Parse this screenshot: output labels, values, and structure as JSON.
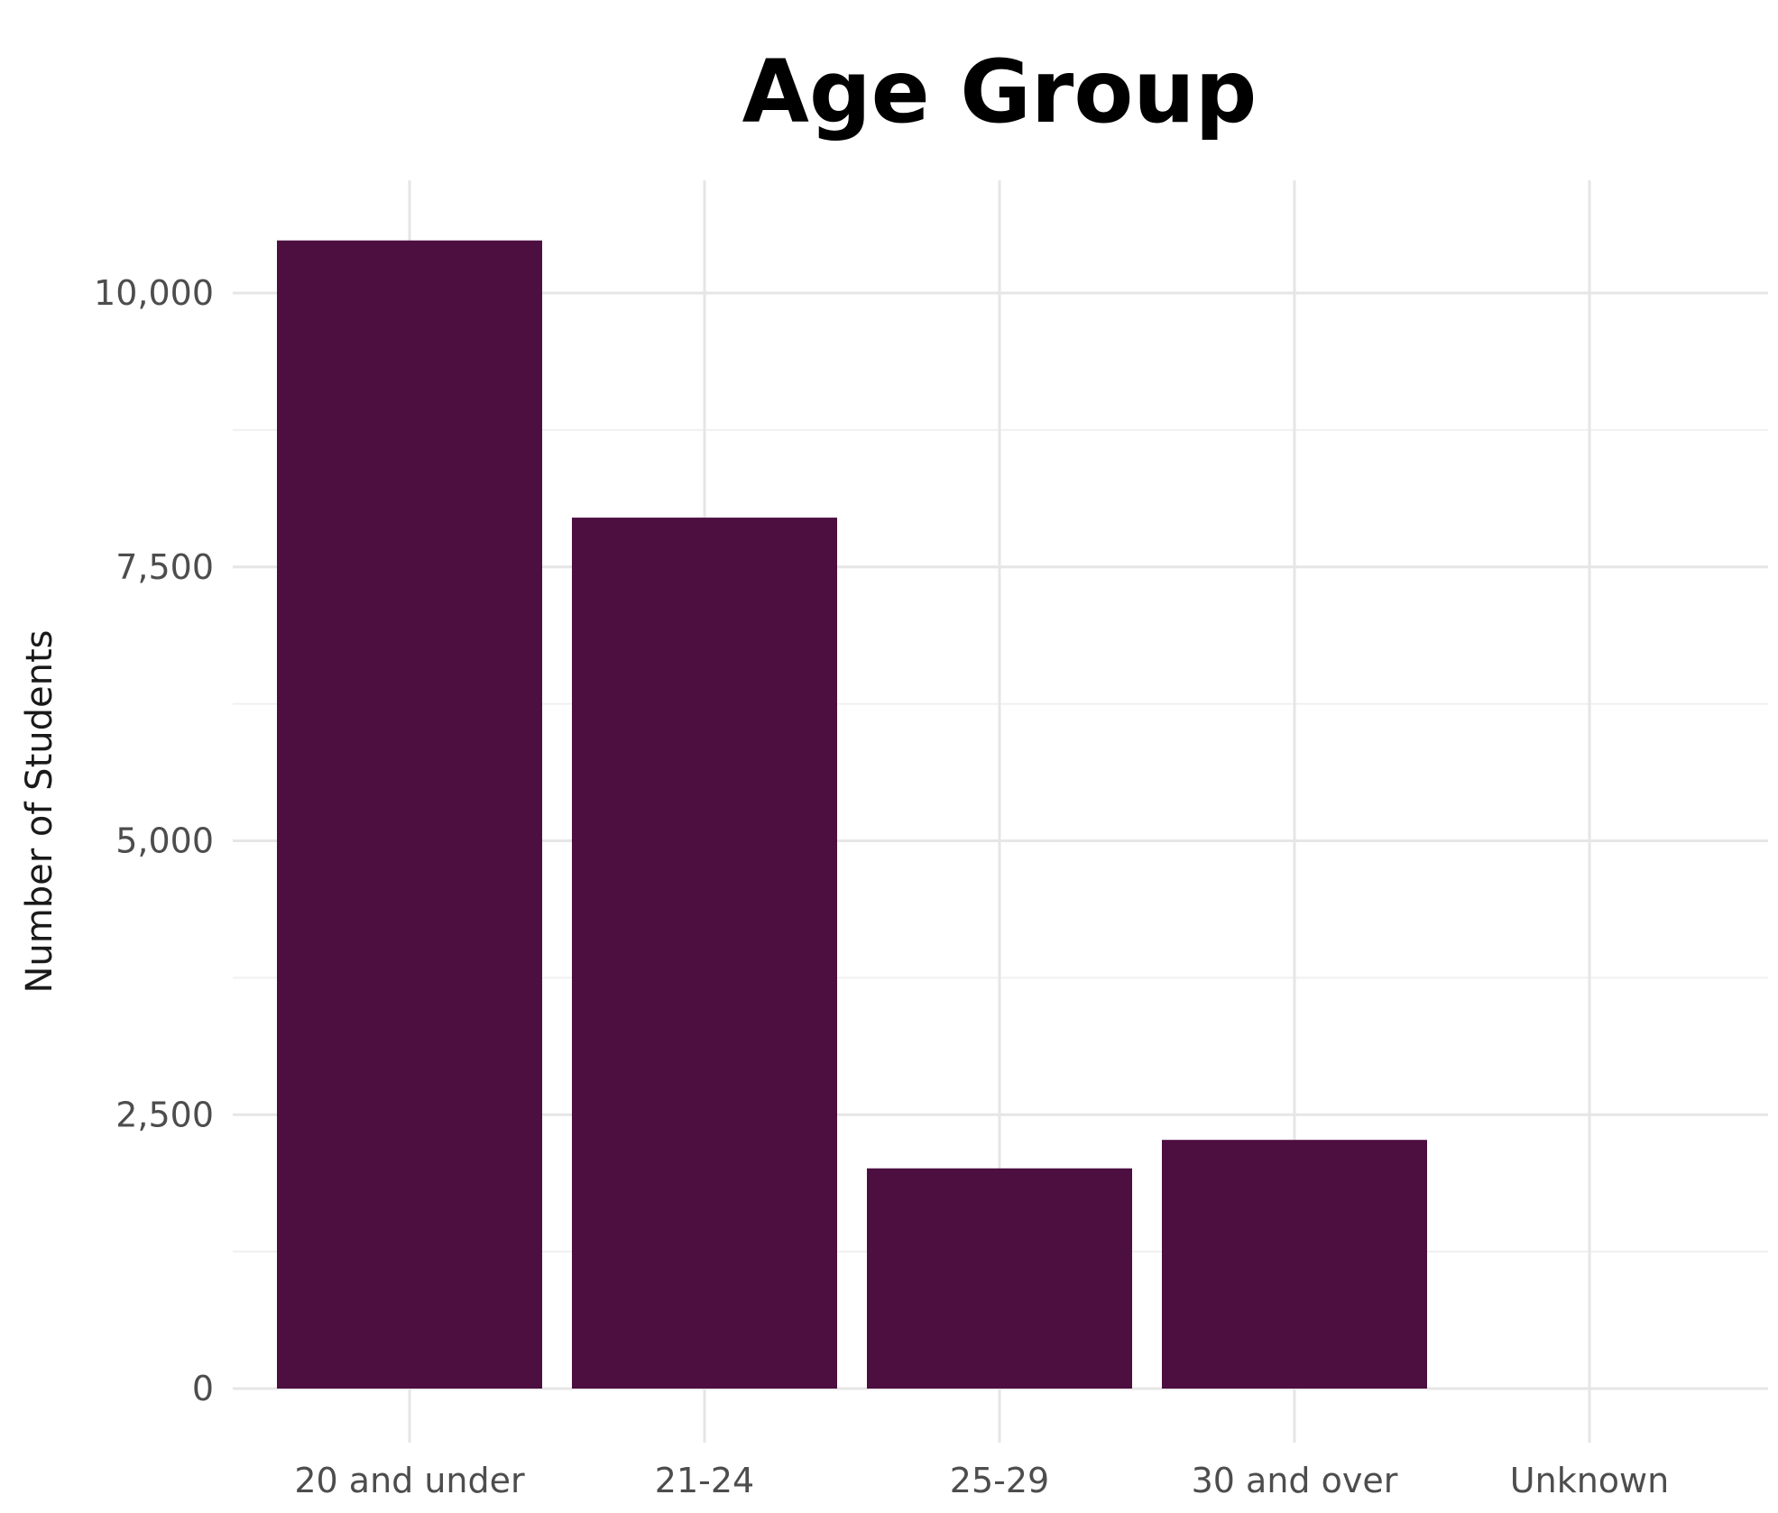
{
  "chart_data": {
    "type": "bar",
    "title": "Age Group",
    "xlabel": "",
    "ylabel": "Number of Students",
    "categories": [
      "20 and under",
      "21-24",
      "25-29",
      "30 and over",
      "Unknown"
    ],
    "values": [
      10480,
      7950,
      2010,
      2270,
      0
    ],
    "ylim": [
      0,
      11000
    ],
    "yticks": [
      0,
      2500,
      5000,
      7500,
      10000
    ],
    "ytick_labels": [
      "0",
      "2,500",
      "5,000",
      "7,500",
      "10,000"
    ],
    "grid": true,
    "bar_color": "#4d0e40"
  }
}
